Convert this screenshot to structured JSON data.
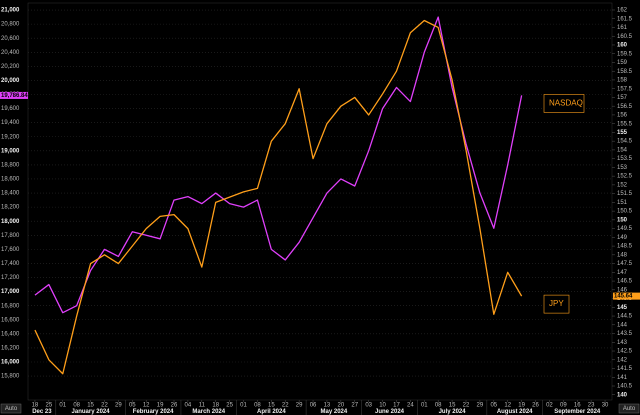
{
  "chart_data": {
    "type": "line",
    "categories": [
      "18",
      "25",
      "01",
      "08",
      "15",
      "22",
      "29",
      "05",
      "12",
      "19",
      "26",
      "04",
      "11",
      "18",
      "25",
      "01",
      "08",
      "15",
      "22",
      "29",
      "06",
      "13",
      "20",
      "27",
      "03",
      "10",
      "17",
      "24",
      "01",
      "08",
      "15",
      "22",
      "29",
      "05",
      "12",
      "19",
      "26",
      "02",
      "09",
      "16",
      "23",
      "30"
    ],
    "months": [
      "Dec 23",
      "January 2024",
      "February 2024",
      "March 2024",
      "April 2024",
      "May 2024",
      "June 2024",
      "July 2024",
      "August 2024",
      "September 2024"
    ],
    "series": [
      {
        "name": "NASDAQ",
        "color": "#e040fb",
        "axis": "y",
        "last_value_label": "19,786.84",
        "values": [
          16950,
          17100,
          16700,
          16800,
          17300,
          17600,
          17500,
          17850,
          17800,
          17750,
          18300,
          18350,
          18250,
          18400,
          18250,
          18200,
          18300,
          17600,
          17450,
          17700,
          18050,
          18400,
          18600,
          18500,
          19000,
          19600,
          19900,
          19700,
          20400,
          20900,
          19900,
          19100,
          18400,
          17900,
          18800,
          19786.84,
          null,
          null,
          null,
          null,
          null,
          null
        ]
      },
      {
        "name": "JPY",
        "color": "#ff9f1a",
        "axis": "y2",
        "last_value_label": "145.64",
        "values": [
          143.7,
          142,
          141.2,
          144.5,
          147.5,
          148,
          147.5,
          148.5,
          149.5,
          150.2,
          150.3,
          149.5,
          147.3,
          151,
          151.3,
          151.6,
          151.8,
          154.5,
          155.5,
          157.5,
          153.5,
          155.5,
          156.5,
          157,
          156,
          157.2,
          158.5,
          160.7,
          161.4,
          161,
          158,
          154,
          149.5,
          144.6,
          147,
          145.64,
          null,
          null,
          null,
          null,
          null,
          null
        ]
      }
    ],
    "ylim": [
      15460,
      21100
    ],
    "yticks": [
      {
        "value": 15800,
        "label": "15,800"
      },
      {
        "value": 16000,
        "label": "16,000"
      },
      {
        "value": 16200,
        "label": "16,200"
      },
      {
        "value": 16400,
        "label": "16,400"
      },
      {
        "value": 16600,
        "label": "16,600"
      },
      {
        "value": 16800,
        "label": "16,800"
      },
      {
        "value": 17000,
        "label": "17,000"
      },
      {
        "value": 17200,
        "label": "17,200"
      },
      {
        "value": 17400,
        "label": "17,400"
      },
      {
        "value": 17600,
        "label": "17,600"
      },
      {
        "value": 17800,
        "label": "17,800"
      },
      {
        "value": 18000,
        "label": "18,000"
      },
      {
        "value": 18200,
        "label": "18,200"
      },
      {
        "value": 18400,
        "label": "18,400"
      },
      {
        "value": 18600,
        "label": "18,600"
      },
      {
        "value": 18800,
        "label": "18,800"
      },
      {
        "value": 19000,
        "label": "19,000"
      },
      {
        "value": 19200,
        "label": "19,200"
      },
      {
        "value": 19400,
        "label": "19,400"
      },
      {
        "value": 19600,
        "label": "19,600"
      },
      {
        "value": 19800,
        "label": "19,800"
      },
      {
        "value": 20000,
        "label": "20,000"
      },
      {
        "value": 20200,
        "label": "20,200"
      },
      {
        "value": 20400,
        "label": "20,400"
      },
      {
        "value": 20600,
        "label": "20,600"
      },
      {
        "value": 20800,
        "label": "20,800"
      },
      {
        "value": 21000,
        "label": "21,000"
      }
    ],
    "y2lim": [
      139.7,
      162.4
    ],
    "y2ticks": [
      140,
      140.5,
      141,
      141.5,
      142,
      142.5,
      143,
      143.5,
      144,
      144.5,
      145,
      145.5,
      146,
      146.5,
      147,
      147.5,
      148,
      148.5,
      149,
      149.5,
      150,
      150.5,
      151,
      151.5,
      152,
      152.5,
      153,
      153.5,
      154,
      154.5,
      155,
      155.5,
      156,
      156.5,
      157,
      157.5,
      158,
      158.5,
      159,
      159.5,
      160,
      160.5,
      161,
      161.5,
      162
    ],
    "grid": true,
    "axis_mode": "Auto"
  }
}
